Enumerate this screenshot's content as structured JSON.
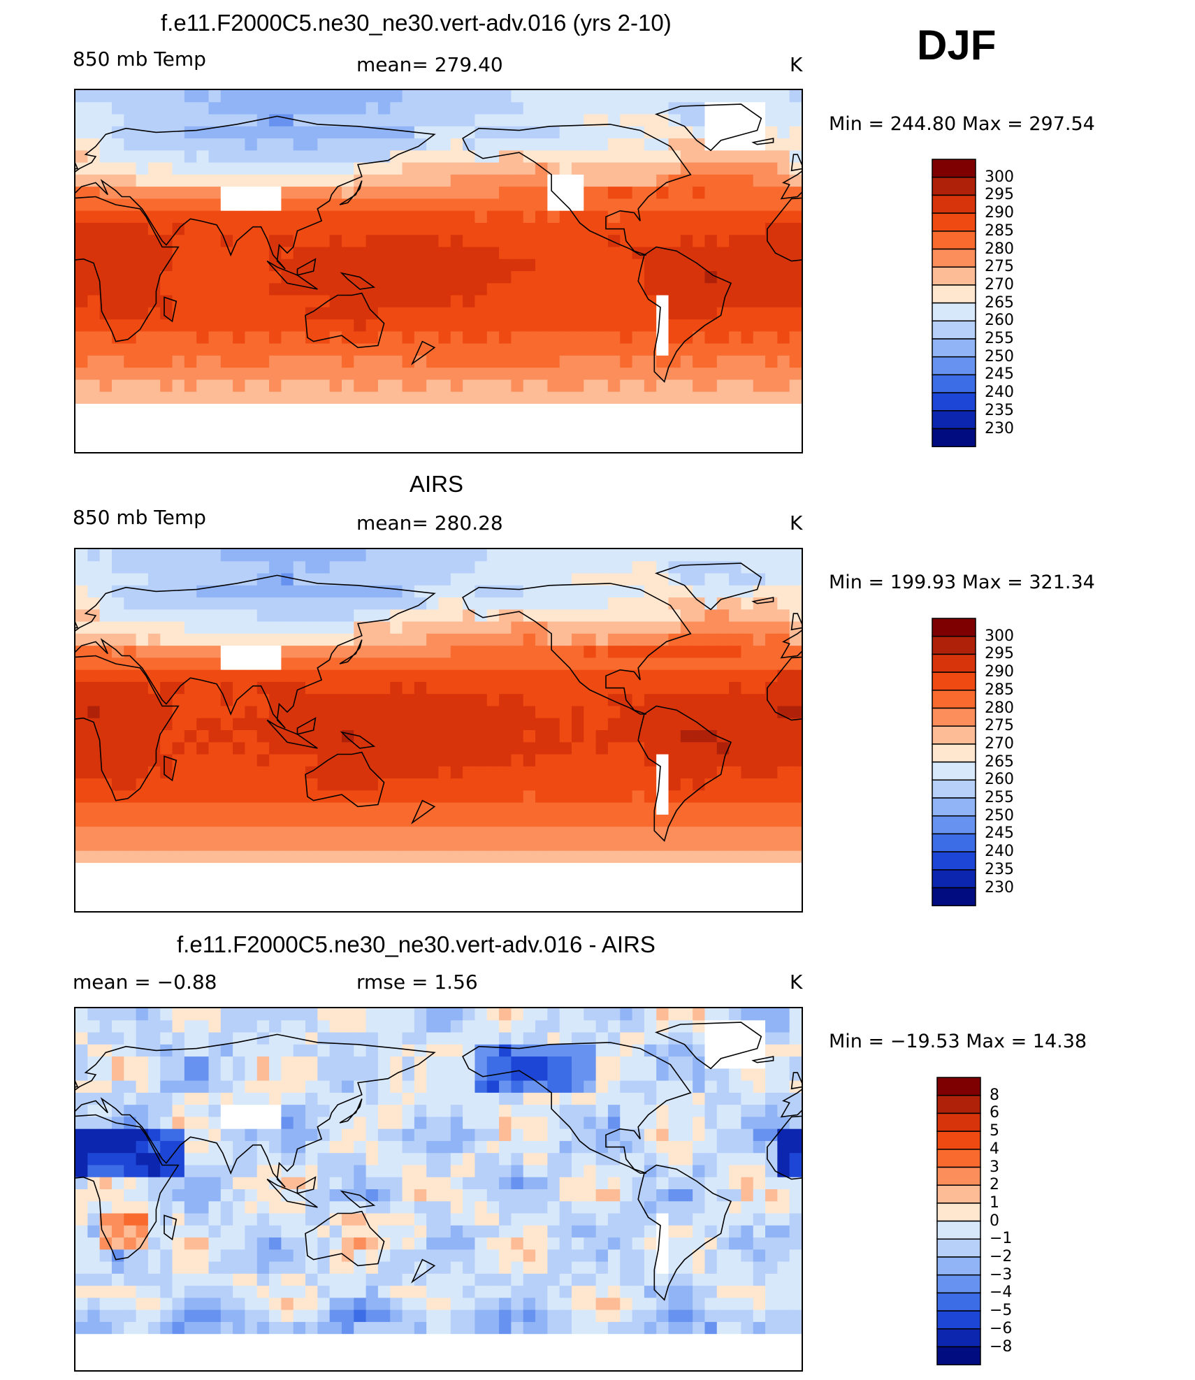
{
  "season": "DJF",
  "panels": [
    {
      "title": "f.e11.F2000C5.ne30_ne30.vert-adv.016 (yrs 2-10)",
      "left": "850 mb Temp",
      "center": "mean=  279.40",
      "right": "K",
      "minmax": "Min  =  244.80  Max  =  297.54",
      "field": "model",
      "colorbar": {
        "labels": [
          "300",
          "295",
          "290",
          "285",
          "280",
          "275",
          "270",
          "265",
          "260",
          "255",
          "250",
          "245",
          "240",
          "235",
          "230"
        ]
      }
    },
    {
      "title": "AIRS",
      "left": "850 mb Temp",
      "center": "mean=  280.28",
      "right": "K",
      "minmax": "Min  =  199.93  Max  =  321.34",
      "field": "obs",
      "colorbar": {
        "labels": [
          "300",
          "295",
          "290",
          "285",
          "280",
          "275",
          "270",
          "265",
          "260",
          "255",
          "250",
          "245",
          "240",
          "235",
          "230"
        ]
      }
    },
    {
      "title": "f.e11.F2000C5.ne30_ne30.vert-adv.016 - AIRS",
      "left": "mean  =    −0.88",
      "center": "rmse  =     1.56",
      "right": "K",
      "minmax": "Min  =  −19.53  Max  =    14.38",
      "field": "diff",
      "colorbar": {
        "labels": [
          "8",
          "6",
          "5",
          "4",
          "3",
          "2",
          "1",
          "0",
          "−1",
          "−2",
          "−3",
          "−4",
          "−5",
          "−6",
          "−8"
        ]
      }
    }
  ],
  "colors": {
    "scale": [
      "#7f0000",
      "#b0210a",
      "#d8340c",
      "#ef4a12",
      "#f86a2e",
      "#fb8e5a",
      "#fdbb96",
      "#fee6cf",
      "#d8e8fb",
      "#b7d0f9",
      "#90b4f5",
      "#6892ef",
      "#3c6ce6",
      "#1e46d6",
      "#0c26b0",
      "#000c80"
    ],
    "land": "#000000"
  }
}
